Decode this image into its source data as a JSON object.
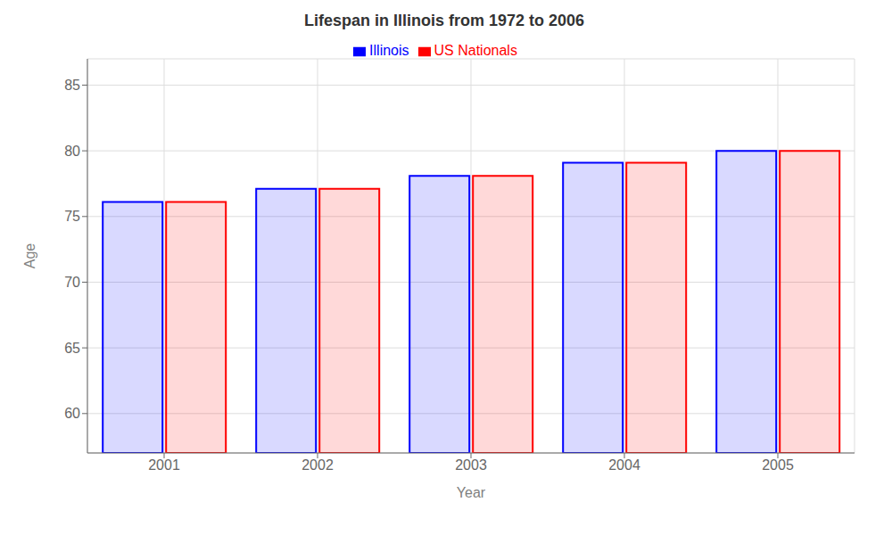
{
  "chart_data": {
    "type": "bar",
    "title": "Lifespan in Illinois from 1972 to 2006",
    "x_label": "Year",
    "y_label": "Age",
    "categories": [
      "2001",
      "2002",
      "2003",
      "2004",
      "2005"
    ],
    "series": [
      {
        "name": "Illinois",
        "color": "#0000FF",
        "values": [
          76.1,
          77.1,
          78.1,
          79.1,
          80.0
        ]
      },
      {
        "name": "US Nationals",
        "color": "#FF0000",
        "values": [
          76.1,
          77.1,
          78.1,
          79.1,
          80.0
        ]
      }
    ],
    "ylim": [
      57,
      87
    ],
    "yticks": [
      60,
      65,
      70,
      75,
      80,
      85
    ],
    "grid": true,
    "legend": "top"
  }
}
